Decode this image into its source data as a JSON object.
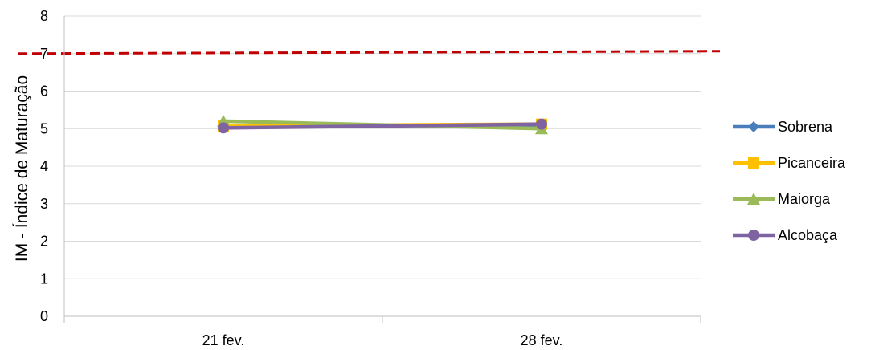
{
  "chart_data": {
    "type": "line",
    "title": "",
    "xlabel": "",
    "ylabel": "IM - Índice de Maturação",
    "categories": [
      "21 fev.",
      "28 fev."
    ],
    "ylim": [
      0,
      8
    ],
    "yticks": [
      0,
      1,
      2,
      3,
      4,
      5,
      6,
      7,
      8
    ],
    "grid": true,
    "legend_position": "right",
    "reference_line": {
      "value": 7,
      "style": "dashed",
      "color": "#c00000"
    },
    "series": [
      {
        "name": "Sobrena",
        "values": [
          5.05,
          5.1
        ],
        "color": "#4a7ebb",
        "marker": "diamond"
      },
      {
        "name": "Picanceira",
        "values": [
          5.07,
          5.12
        ],
        "color": "#ffc000",
        "marker": "square"
      },
      {
        "name": "Maiorga",
        "values": [
          5.2,
          5.0
        ],
        "color": "#9bbb59",
        "marker": "triangle"
      },
      {
        "name": "Alcobaça",
        "values": [
          5.02,
          5.12
        ],
        "color": "#8064a2",
        "marker": "circle"
      }
    ]
  }
}
